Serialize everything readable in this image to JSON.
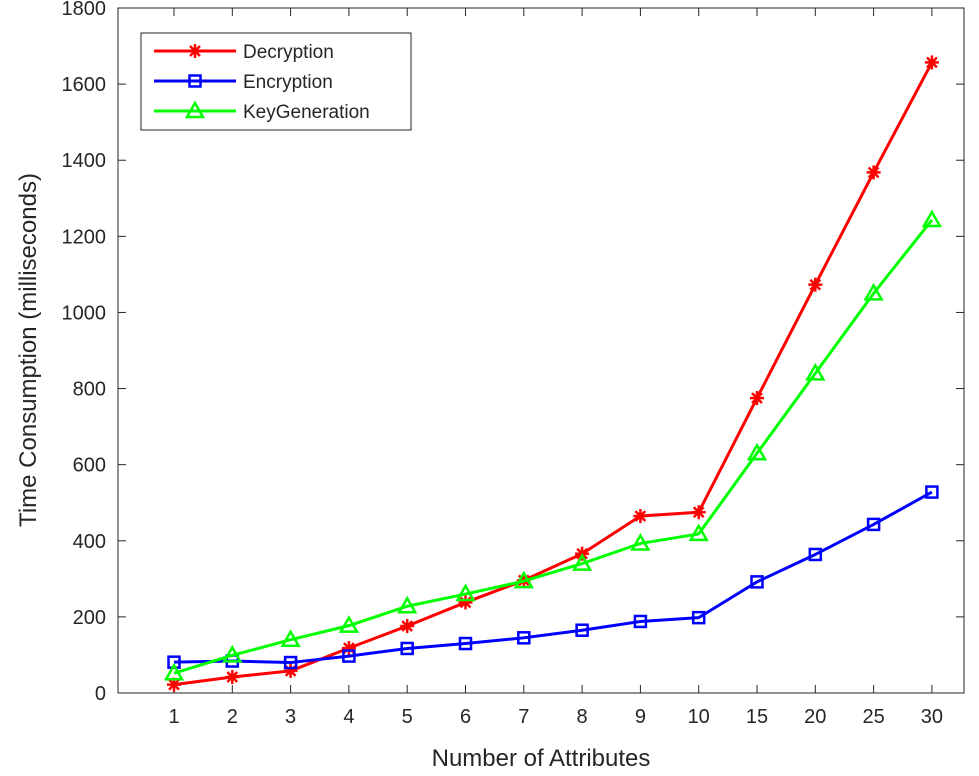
{
  "chart_data": {
    "type": "line",
    "title": "",
    "xlabel": "Number of Attributes",
    "ylabel": "Time Consumption (milliseconds)",
    "categories": [
      "1",
      "2",
      "3",
      "4",
      "5",
      "6",
      "7",
      "8",
      "9",
      "10",
      "15",
      "20",
      "25",
      "30"
    ],
    "ylim": [
      0,
      1800
    ],
    "yticks": [
      0,
      200,
      400,
      600,
      800,
      1000,
      1200,
      1400,
      1600,
      1800
    ],
    "grid": false,
    "legend_position": "top-left",
    "series": [
      {
        "name": "Decryption",
        "color": "#ff0000",
        "marker": "asterisk",
        "values": [
          22,
          42,
          58,
          118,
          176,
          238,
          296,
          366,
          465,
          475,
          775,
          1073,
          1368,
          1657
        ]
      },
      {
        "name": "Encryption",
        "color": "#0000ff",
        "marker": "square",
        "values": [
          81,
          84,
          80,
          97,
          117,
          130,
          145,
          165,
          188,
          198,
          292,
          364,
          443,
          528
        ]
      },
      {
        "name": "KeyGeneration",
        "color": "#00ff00",
        "marker": "triangle",
        "values": [
          52,
          99,
          140,
          177,
          228,
          260,
          294,
          340,
          393,
          418,
          630,
          840,
          1050,
          1243
        ]
      }
    ]
  }
}
